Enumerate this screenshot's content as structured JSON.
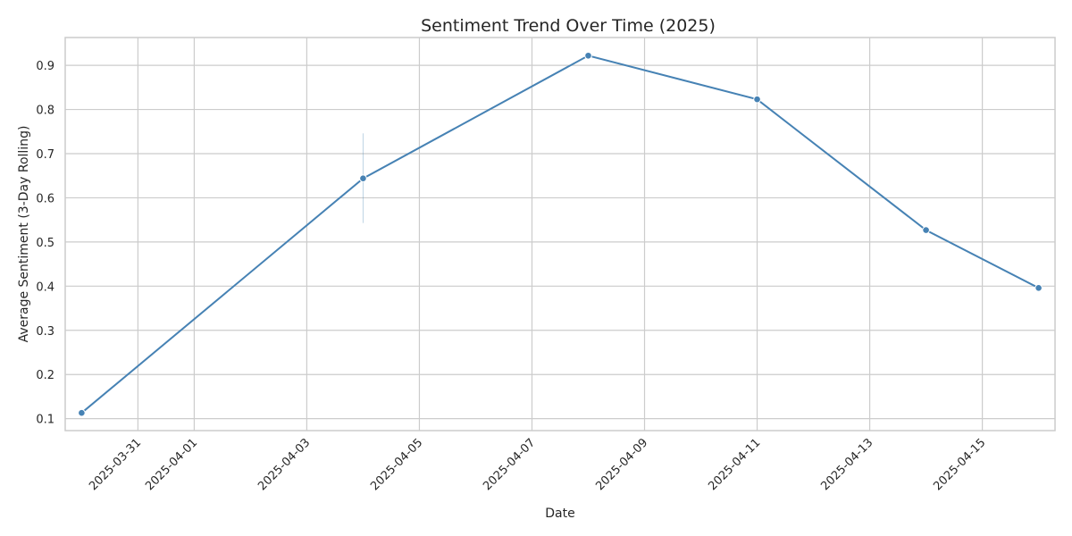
{
  "chart_data": {
    "type": "line",
    "title": "Sentiment Trend Over Time (2025)",
    "xlabel": "Date",
    "ylabel": "Average Sentiment (3-Day Rolling)",
    "x": [
      "2025-03-30",
      "2025-04-04",
      "2025-04-08",
      "2025-04-11",
      "2025-04-14",
      "2025-04-16"
    ],
    "series": [
      {
        "values": [
          0.113,
          0.644,
          0.922,
          0.823,
          0.527,
          0.396
        ]
      }
    ],
    "ci_band": {
      "x": "2025-04-04",
      "low": 0.543,
      "high": 0.746
    },
    "x_ticks": [
      "2025-03-31",
      "2025-04-01",
      "2025-04-03",
      "2025-04-05",
      "2025-04-07",
      "2025-04-09",
      "2025-04-11",
      "2025-04-13",
      "2025-04-15"
    ],
    "xlim": [
      "2025-03-29T17:00",
      "2025-04-16T07:00"
    ],
    "ylim": [
      0.073,
      0.963
    ],
    "y_ticks": [
      0.1,
      0.2,
      0.3,
      0.4,
      0.5,
      0.6,
      0.7,
      0.8,
      0.9
    ],
    "grid": true,
    "color": "#4682b4",
    "marker": "circle"
  }
}
